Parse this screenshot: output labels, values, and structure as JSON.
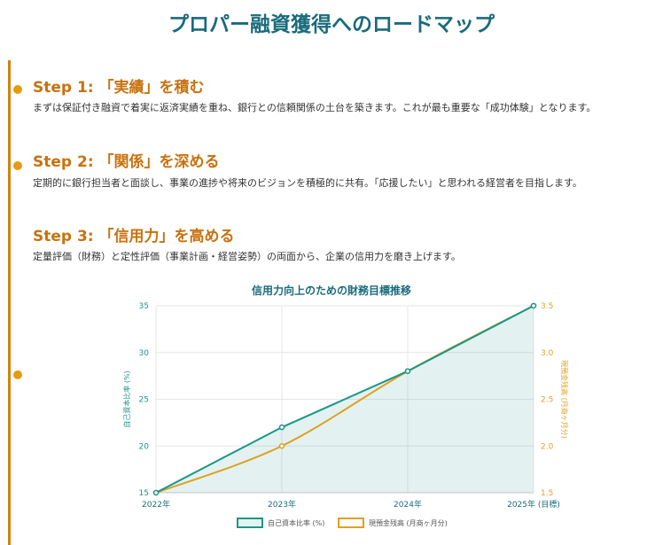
{
  "page": {
    "title": "プロパー融資獲得へのロードマップ"
  },
  "colors": {
    "accent": "#d4820a",
    "heading": "#1a6b7c",
    "teal": "#1a9688",
    "gold": "#e0a020"
  },
  "steps": [
    {
      "heading": "Step 1: 「実績」を積む",
      "description": "まずは保証付き融資で着実に返済実績を重ね、銀行との信頼関係の土台を築きます。これが最も重要な「成功体験」となります。"
    },
    {
      "heading": "Step 2: 「関係」を深める",
      "description": "定期的に銀行担当者と面談し、事業の進捗や将来のビジョンを積極的に共有。「応援したい」と思われる経営者を目指します。"
    },
    {
      "heading": "Step 3: 「信用力」を高める",
      "description": "定量評価（財務）と定性評価（事業計画・経営姿勢）の両面から、企業の信用力を磨き上げます。"
    }
  ],
  "chart_data": {
    "type": "line",
    "title": "信用力向上のための財務目標推移",
    "categories": [
      "2022年",
      "2023年",
      "2024年",
      "2025年 (目標)"
    ],
    "series": [
      {
        "name": "自己資本比率 (%)",
        "values": [
          15,
          22,
          28,
          35
        ],
        "axis": "left",
        "color": "#1a9688",
        "fill": true
      },
      {
        "name": "現預金残高 (月商ヶ月分)",
        "values": [
          1.5,
          2.0,
          2.8,
          3.5
        ],
        "axis": "right",
        "color": "#e0a020",
        "fill": false
      }
    ],
    "y_left": {
      "label": "自己資本比率 (%)",
      "range": [
        15,
        35
      ],
      "ticks": [
        15,
        20,
        25,
        30,
        35
      ]
    },
    "y_right": {
      "label": "現預金残高 (月商ヶ月分)",
      "range": [
        1.5,
        3.5
      ],
      "ticks": [
        "1.5",
        "2.0",
        "2.5",
        "3.0",
        "3.5"
      ]
    },
    "grid": true,
    "legend": "bottom"
  }
}
